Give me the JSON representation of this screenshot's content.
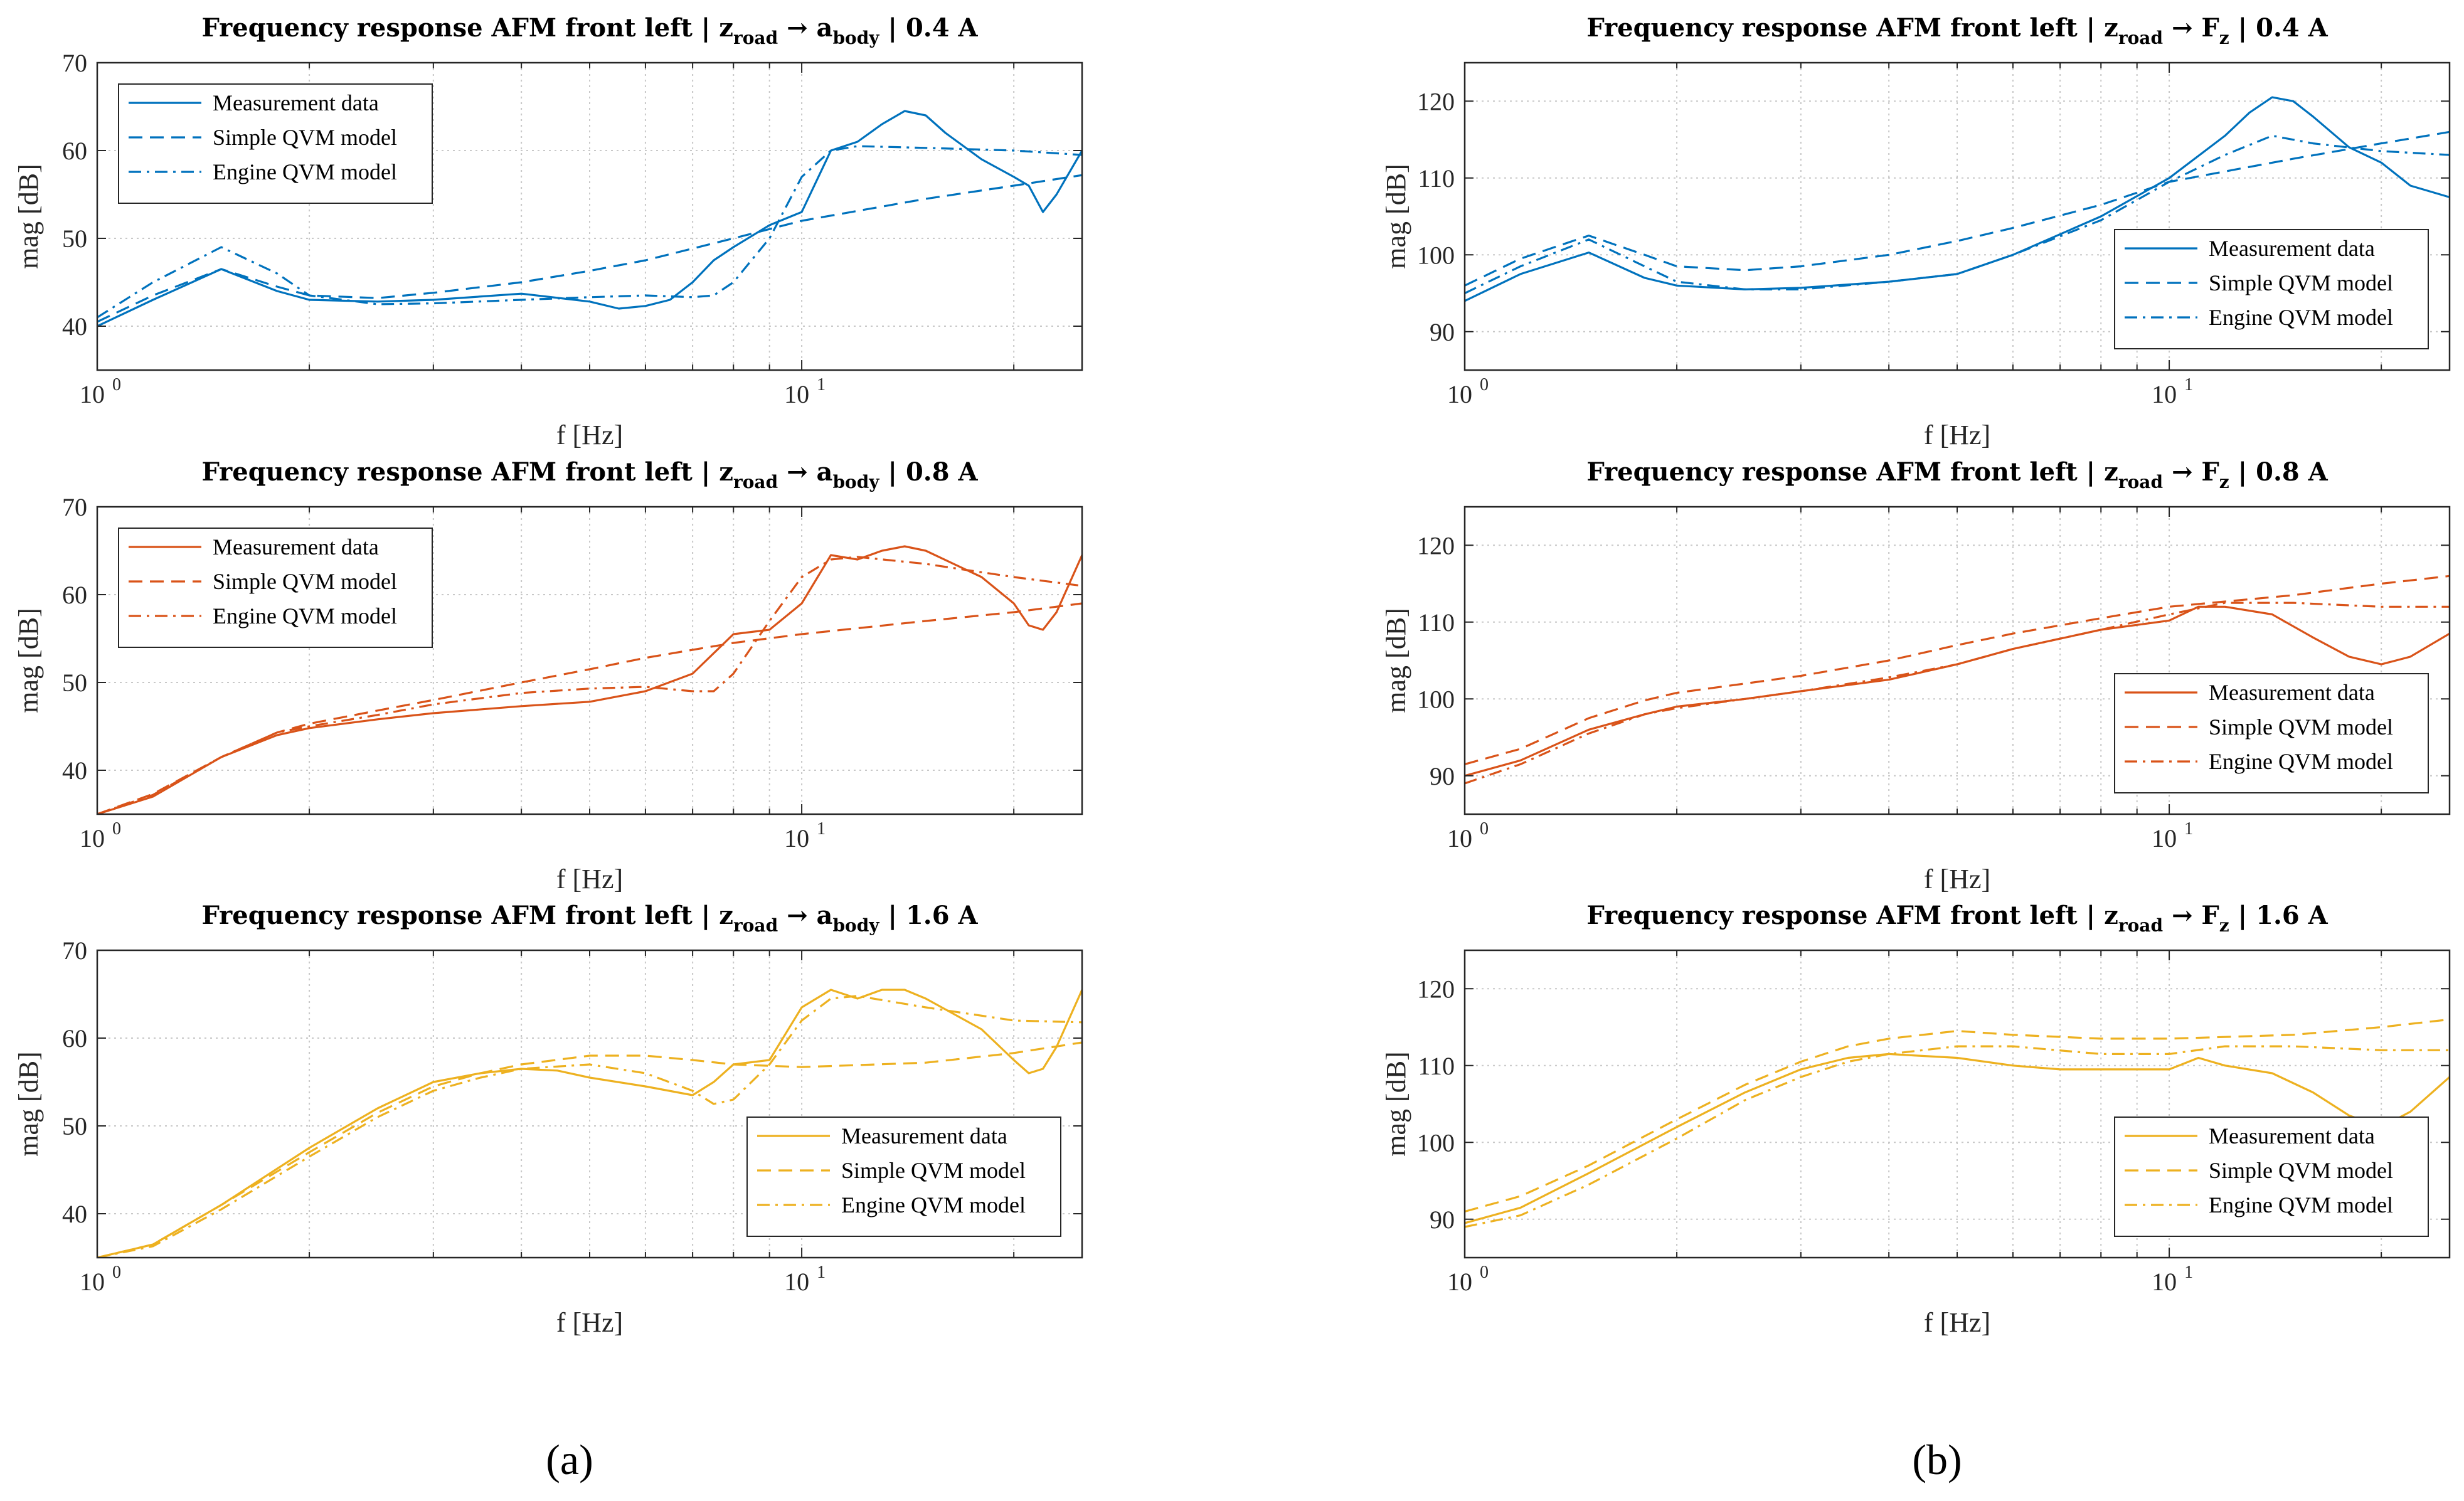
{
  "panel_labels": {
    "a": "(a)",
    "b": "(b)"
  },
  "colors": {
    "0.4 A": "#0072BD",
    "0.8 A": "#D95319",
    "1.6 A": "#EDB120"
  },
  "chart_data": [
    {
      "type": "line",
      "id": "a1",
      "col": 0,
      "row": 0,
      "title": {
        "prefix": "Frequency response AFM front left | z",
        "sub1": "road",
        "arrow": " → a",
        "sub2": "body",
        "suffix": " | 0.4 A"
      },
      "xlabel": "f [Hz]",
      "ylabel": "mag [dB]",
      "xscale": "log",
      "xlim": [
        1,
        25
      ],
      "ylim": [
        35,
        70
      ],
      "yticks": [
        40,
        50,
        60,
        70
      ],
      "xticks": [
        {
          "base": "10",
          "exp": "0"
        },
        {
          "base": "10",
          "exp": "1"
        }
      ],
      "color": "#0072BD",
      "legend": "top-left",
      "series": [
        {
          "name": "Measurement data",
          "style": "solid",
          "x": [
            1,
            1.2,
            1.5,
            1.8,
            2,
            2.5,
            3,
            4,
            5,
            5.5,
            6,
            6.5,
            7,
            7.5,
            8,
            9,
            10,
            11,
            12,
            13,
            14,
            15,
            16,
            18,
            20,
            21,
            22,
            23,
            25
          ],
          "y": [
            40,
            43,
            46.5,
            44,
            43,
            42.8,
            43,
            43.7,
            42.8,
            42,
            42.3,
            43,
            45,
            47.5,
            49,
            51.5,
            53,
            60,
            61,
            63,
            64.5,
            64,
            62,
            59,
            57,
            56,
            53,
            55,
            60
          ]
        },
        {
          "name": "Simple QVM model",
          "style": "dashed",
          "x": [
            1,
            1.2,
            1.5,
            1.8,
            2,
            2.5,
            3,
            4,
            5,
            6,
            8,
            10,
            15,
            20,
            25
          ],
          "y": [
            40.5,
            43.5,
            46.5,
            44.5,
            43.5,
            43.2,
            43.8,
            45,
            46.3,
            47.5,
            50,
            52,
            54.5,
            56,
            57.2
          ]
        },
        {
          "name": "Engine QVM model",
          "style": "dashdot",
          "x": [
            1,
            1.2,
            1.5,
            1.8,
            2,
            2.5,
            3,
            4,
            5,
            6,
            7,
            7.5,
            8,
            9,
            10,
            11,
            12,
            15,
            20,
            25
          ],
          "y": [
            41,
            45,
            49,
            46,
            43.5,
            42.5,
            42.6,
            43,
            43.3,
            43.5,
            43.3,
            43.5,
            45,
            50,
            57,
            60,
            60.5,
            60.3,
            60,
            59.5
          ]
        }
      ]
    },
    {
      "type": "line",
      "id": "b1",
      "col": 1,
      "row": 0,
      "title": {
        "prefix": "Frequency response AFM front left | z",
        "sub1": "road",
        "arrow": " → F",
        "sub2": "z",
        "suffix": " | 0.4 A"
      },
      "xlabel": "f [Hz]",
      "ylabel": "mag [dB]",
      "xscale": "log",
      "xlim": [
        1,
        25
      ],
      "ylim": [
        85,
        125
      ],
      "yticks": [
        90,
        100,
        110,
        120
      ],
      "xticks": [
        {
          "base": "10",
          "exp": "0"
        },
        {
          "base": "10",
          "exp": "1"
        }
      ],
      "color": "#0072BD",
      "legend": "bottom-right",
      "series": [
        {
          "name": "Measurement data",
          "style": "solid",
          "x": [
            1,
            1.2,
            1.5,
            1.8,
            2,
            2.5,
            3,
            4,
            5,
            6,
            8,
            10,
            12,
            13,
            14,
            15,
            16,
            18,
            20,
            22,
            25
          ],
          "y": [
            94,
            97.5,
            100.3,
            97,
            96,
            95.5,
            95.7,
            96.5,
            97.5,
            100,
            105,
            110,
            115.5,
            118.5,
            120.5,
            120,
            118,
            114,
            112,
            109,
            107.5
          ]
        },
        {
          "name": "Simple QVM model",
          "style": "dashed",
          "x": [
            1,
            1.2,
            1.5,
            1.8,
            2,
            2.5,
            3,
            4,
            5,
            6,
            8,
            10,
            15,
            20,
            25
          ],
          "y": [
            96,
            99.5,
            102.5,
            100,
            98.5,
            98,
            98.5,
            100,
            101.8,
            103.5,
            106.5,
            109.5,
            112.5,
            114.5,
            116
          ]
        },
        {
          "name": "Engine QVM model",
          "style": "dashdot",
          "x": [
            1,
            1.2,
            1.5,
            1.8,
            2,
            2.5,
            3,
            4,
            5,
            6,
            8,
            10,
            12,
            14,
            16,
            20,
            25
          ],
          "y": [
            95,
            98.5,
            102,
            98.5,
            96.5,
            95.5,
            95.5,
            96.5,
            97.5,
            100,
            104.5,
            109.5,
            113,
            115.5,
            114.5,
            113.5,
            113
          ]
        }
      ]
    },
    {
      "type": "line",
      "id": "a2",
      "col": 0,
      "row": 1,
      "title": {
        "prefix": "Frequency response AFM front left | z",
        "sub1": "road",
        "arrow": " → a",
        "sub2": "body",
        "suffix": " | 0.8 A"
      },
      "xlabel": "f [Hz]",
      "ylabel": "mag [dB]",
      "xscale": "log",
      "xlim": [
        1,
        25
      ],
      "ylim": [
        35,
        70
      ],
      "yticks": [
        40,
        50,
        60,
        70
      ],
      "xticks": [
        {
          "base": "10",
          "exp": "0"
        },
        {
          "base": "10",
          "exp": "1"
        }
      ],
      "color": "#D95319",
      "legend": "top-left",
      "series": [
        {
          "name": "Measurement data",
          "style": "solid",
          "x": [
            1,
            1.2,
            1.5,
            1.8,
            2,
            2.5,
            3,
            4,
            5,
            6,
            7,
            8,
            9,
            10,
            11,
            12,
            13,
            14,
            15,
            18,
            20,
            21,
            22,
            23,
            25
          ],
          "y": [
            35,
            37,
            41.5,
            44,
            44.8,
            45.8,
            46.5,
            47.3,
            47.8,
            49,
            51,
            55.5,
            56,
            59,
            64.5,
            64,
            65,
            65.5,
            65,
            62,
            59,
            56.5,
            56,
            58,
            64.5
          ]
        },
        {
          "name": "Simple QVM model",
          "style": "dashed",
          "x": [
            1,
            1.2,
            1.5,
            1.8,
            2,
            2.5,
            3,
            4,
            5,
            6,
            8,
            10,
            15,
            20,
            25
          ],
          "y": [
            35,
            37.3,
            41.5,
            44.3,
            45.3,
            46.8,
            48,
            50,
            51.5,
            52.8,
            54.5,
            55.5,
            57,
            58,
            59
          ]
        },
        {
          "name": "Engine QVM model",
          "style": "dashdot",
          "x": [
            1,
            1.2,
            1.5,
            1.8,
            2,
            2.5,
            3,
            4,
            5,
            6,
            7,
            7.5,
            8,
            9,
            10,
            11,
            12,
            15,
            20,
            25
          ],
          "y": [
            35,
            37.2,
            41.5,
            44.3,
            45,
            46.3,
            47.5,
            48.8,
            49.3,
            49.5,
            49,
            49,
            51,
            57,
            62,
            64,
            64.3,
            63.5,
            62,
            61
          ]
        }
      ]
    },
    {
      "type": "line",
      "id": "b2",
      "col": 1,
      "row": 1,
      "title": {
        "prefix": "Frequency response AFM front left | z",
        "sub1": "road",
        "arrow": " → F",
        "sub2": "z",
        "suffix": " | 0.8 A"
      },
      "xlabel": "f [Hz]",
      "ylabel": "mag [dB]",
      "xscale": "log",
      "xlim": [
        1,
        25
      ],
      "ylim": [
        85,
        125
      ],
      "yticks": [
        90,
        100,
        110,
        120
      ],
      "xticks": [
        {
          "base": "10",
          "exp": "0"
        },
        {
          "base": "10",
          "exp": "1"
        }
      ],
      "color": "#D95319",
      "legend": "bottom-right",
      "series": [
        {
          "name": "Measurement data",
          "style": "solid",
          "x": [
            1,
            1.2,
            1.5,
            1.8,
            2,
            2.5,
            3,
            4,
            5,
            6,
            8,
            10,
            11,
            12,
            14,
            16,
            18,
            20,
            22,
            25
          ],
          "y": [
            90,
            92,
            96,
            98,
            99,
            100,
            101,
            102.5,
            104.5,
            106.5,
            109,
            110.2,
            112,
            112,
            111,
            108,
            105.5,
            104.5,
            105.5,
            108.5
          ]
        },
        {
          "name": "Simple QVM model",
          "style": "dashed",
          "x": [
            1,
            1.2,
            1.5,
            1.8,
            2,
            2.5,
            3,
            4,
            5,
            6,
            8,
            10,
            15,
            20,
            25
          ],
          "y": [
            91.5,
            93.5,
            97.5,
            99.8,
            100.8,
            102,
            103,
            105,
            107,
            108.5,
            110.5,
            112,
            113.5,
            115,
            116
          ]
        },
        {
          "name": "Engine QVM model",
          "style": "dashdot",
          "x": [
            1,
            1.2,
            1.5,
            1.8,
            2,
            2.5,
            3,
            4,
            5,
            6,
            8,
            10,
            12,
            15,
            20,
            25
          ],
          "y": [
            89,
            91.5,
            95.5,
            98,
            98.8,
            100,
            101,
            102.8,
            104.5,
            106.5,
            109,
            111,
            112.5,
            112.5,
            112,
            112
          ]
        }
      ]
    },
    {
      "type": "line",
      "id": "a3",
      "col": 0,
      "row": 2,
      "title": {
        "prefix": "Frequency response AFM front left | z",
        "sub1": "road",
        "arrow": " → a",
        "sub2": "body",
        "suffix": " | 1.6 A"
      },
      "xlabel": "f [Hz]",
      "ylabel": "mag [dB]",
      "xscale": "log",
      "xlim": [
        1,
        25
      ],
      "ylim": [
        35,
        70
      ],
      "yticks": [
        40,
        50,
        60,
        70
      ],
      "xticks": [
        {
          "base": "10",
          "exp": "0"
        },
        {
          "base": "10",
          "exp": "1"
        }
      ],
      "color": "#EDB120",
      "legend": "bottom-right",
      "series": [
        {
          "name": "Measurement data",
          "style": "solid",
          "x": [
            1,
            1.2,
            1.5,
            2,
            2.5,
            3,
            3.5,
            4,
            4.5,
            5,
            6,
            7,
            7.5,
            8,
            9,
            10,
            11,
            12,
            13,
            14,
            15,
            18,
            20,
            21,
            22,
            23,
            25
          ],
          "y": [
            35,
            36.5,
            41,
            47.5,
            52,
            55,
            56,
            56.5,
            56.3,
            55.5,
            54.5,
            53.5,
            55,
            57,
            57.5,
            63.5,
            65.5,
            64.5,
            65.5,
            65.5,
            64.5,
            61,
            57.5,
            56,
            56.5,
            59,
            65.5
          ]
        },
        {
          "name": "Simple QVM model",
          "style": "dashed",
          "x": [
            1,
            1.2,
            1.5,
            2,
            2.5,
            3,
            3.5,
            4,
            5,
            6,
            7,
            8,
            10,
            15,
            20,
            25
          ],
          "y": [
            35,
            36.5,
            41,
            47,
            51.5,
            54.5,
            56,
            57,
            58,
            58,
            57.5,
            57,
            56.7,
            57.2,
            58.3,
            59.5
          ]
        },
        {
          "name": "Engine QVM model",
          "style": "dashdot",
          "x": [
            1,
            1.2,
            1.5,
            2,
            2.5,
            3,
            3.5,
            4,
            5,
            6,
            7,
            7.5,
            8,
            9,
            10,
            11,
            12,
            15,
            20,
            25
          ],
          "y": [
            35,
            36.3,
            40.5,
            46.5,
            51,
            54,
            55.5,
            56.5,
            57,
            56,
            54,
            52.5,
            53,
            57,
            62,
            64.5,
            64.8,
            63.5,
            62,
            61.8
          ]
        }
      ]
    },
    {
      "type": "line",
      "id": "b3",
      "col": 1,
      "row": 2,
      "title": {
        "prefix": "Frequency response AFM front left | z",
        "sub1": "road",
        "arrow": " → F",
        "sub2": "z",
        "suffix": " | 1.6 A"
      },
      "xlabel": "f [Hz]",
      "ylabel": "mag [dB]",
      "xscale": "log",
      "xlim": [
        1,
        25
      ],
      "ylim": [
        85,
        125
      ],
      "yticks": [
        90,
        100,
        110,
        120
      ],
      "xticks": [
        {
          "base": "10",
          "exp": "0"
        },
        {
          "base": "10",
          "exp": "1"
        }
      ],
      "color": "#EDB120",
      "legend": "bottom-right",
      "series": [
        {
          "name": "Measurement data",
          "style": "solid",
          "x": [
            1,
            1.2,
            1.5,
            2,
            2.5,
            3,
            3.5,
            4,
            5,
            6,
            7,
            8,
            9,
            10,
            11,
            12,
            14,
            16,
            18,
            20,
            22,
            25
          ],
          "y": [
            89.5,
            91.5,
            96,
            102,
            106.5,
            109.5,
            111,
            111.5,
            111,
            110,
            109.5,
            109.5,
            109.5,
            109.5,
            111,
            110,
            109,
            106.5,
            103.5,
            102,
            104,
            108.5
          ]
        },
        {
          "name": "Simple QVM model",
          "style": "dashed",
          "x": [
            1,
            1.2,
            1.5,
            2,
            2.5,
            3,
            3.5,
            4,
            5,
            6,
            8,
            10,
            15,
            20,
            25
          ],
          "y": [
            91,
            93,
            97,
            103,
            107.5,
            110.5,
            112.5,
            113.5,
            114.5,
            114,
            113.5,
            113.5,
            114,
            115,
            116
          ]
        },
        {
          "name": "Engine QVM model",
          "style": "dashdot",
          "x": [
            1,
            1.2,
            1.5,
            2,
            2.5,
            3,
            3.5,
            4,
            5,
            6,
            8,
            10,
            12,
            15,
            20,
            25
          ],
          "y": [
            89,
            90.5,
            94.5,
            100.5,
            105.5,
            108.5,
            110.5,
            111.5,
            112.5,
            112.5,
            111.5,
            111.5,
            112.5,
            112.5,
            112,
            112
          ]
        }
      ]
    }
  ]
}
